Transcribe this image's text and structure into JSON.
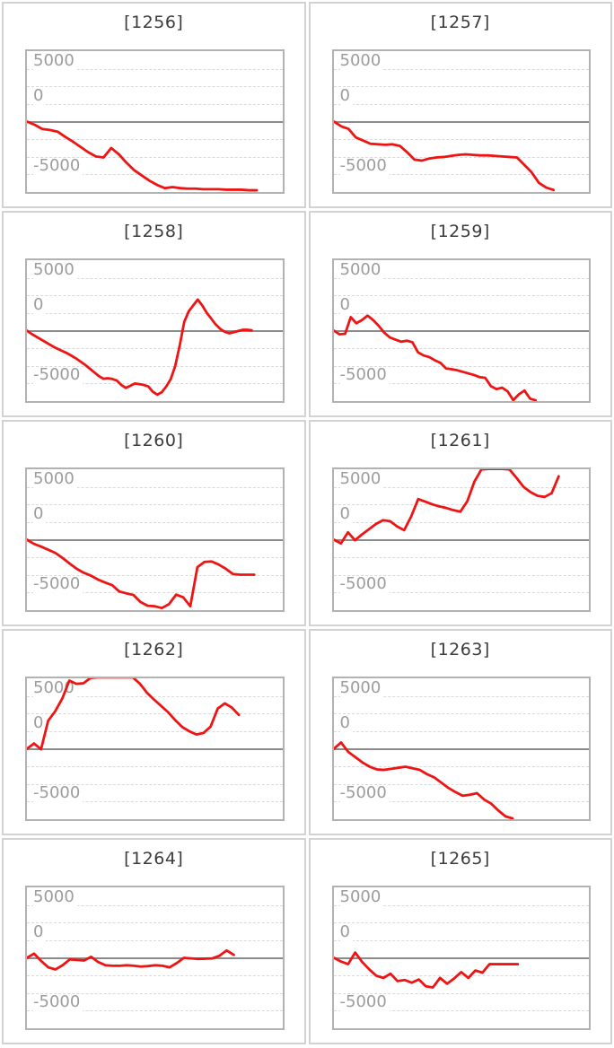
{
  "page": {
    "background_color": "#ffffff",
    "description_visible_text_only": true
  },
  "style": {
    "series_color": "#ee1414",
    "title_color": "#3c3c3c",
    "tick_label_color": "#9c9c9c",
    "cell_border_color": "#d2d2d2",
    "plot_border_color": "#b2b2b2",
    "zero_line_color": "#8a8a8a",
    "grid_line_color": "#d9d9d9"
  },
  "chart_data": {
    "type": "line",
    "layout": "grid-2x5",
    "legend": false,
    "grid": true,
    "y_axis": {
      "tick_labels": [
        "5000",
        "0",
        "-5000"
      ],
      "ticks": [
        5000,
        0,
        -5000
      ],
      "range": [
        -6667,
        6667
      ],
      "zero_line": "solid",
      "minor_gridline_step": 1667
    },
    "x_axis": {
      "tick_labels": [],
      "visible": false
    },
    "series_color": "#ee1414",
    "charts": [
      {
        "title": "[1256]",
        "x_end_fraction": 0.9,
        "values": [
          0,
          -300,
          -700,
          -800,
          -950,
          -1450,
          -1900,
          -2400,
          -2900,
          -3300,
          -3400,
          -2500,
          -3100,
          -3900,
          -4600,
          -5100,
          -5600,
          -6000,
          -6300,
          -6200,
          -6300,
          -6350,
          -6350,
          -6400,
          -6400,
          -6400,
          -6450,
          -6450,
          -6450,
          -6500,
          -6500
        ]
      },
      {
        "title": "[1257]",
        "x_end_fraction": 0.86,
        "values": [
          0,
          -450,
          -700,
          -1500,
          -1800,
          -2100,
          -2150,
          -2200,
          -2150,
          -2300,
          -2900,
          -3600,
          -3700,
          -3500,
          -3400,
          -3350,
          -3250,
          -3150,
          -3100,
          -3150,
          -3200,
          -3200,
          -3250,
          -3300,
          -3350,
          -3400,
          -4100,
          -4800,
          -5800,
          -6250,
          -6470
        ]
      },
      {
        "title": "[1258]",
        "x_end_fraction": 0.88,
        "values": [
          0,
          -300,
          -550,
          -800,
          -1050,
          -1300,
          -1550,
          -1750,
          -1950,
          -2150,
          -2400,
          -2650,
          -2950,
          -3250,
          -3600,
          -3950,
          -4300,
          -4550,
          -4500,
          -4580,
          -4720,
          -5140,
          -5420,
          -5220,
          -5000,
          -5060,
          -5140,
          -5280,
          -5780,
          -6060,
          -5830,
          -5280,
          -4580,
          -3330,
          -1390,
          830,
          1830,
          2390,
          2940,
          2390,
          1690,
          1140,
          580,
          170,
          -110,
          -250,
          -150,
          -30,
          80,
          80,
          30
        ]
      },
      {
        "title": "[1259]",
        "x_end_fraction": 0.79,
        "values": [
          0,
          -350,
          -300,
          1280,
          700,
          1000,
          1420,
          1000,
          450,
          -200,
          -650,
          -850,
          -1050,
          -950,
          -1100,
          -2050,
          -2350,
          -2500,
          -2800,
          -3050,
          -3580,
          -3650,
          -3750,
          -3900,
          -4050,
          -4200,
          -4400,
          -4470,
          -5250,
          -5530,
          -5400,
          -5750,
          -6580,
          -6030,
          -5670,
          -6440,
          -6600
        ]
      },
      {
        "title": "[1260]",
        "x_end_fraction": 0.89,
        "values": [
          0,
          -400,
          -650,
          -950,
          -1250,
          -1720,
          -2250,
          -2750,
          -3130,
          -3400,
          -3770,
          -4050,
          -4300,
          -4900,
          -5080,
          -5230,
          -5900,
          -6250,
          -6300,
          -6470,
          -6100,
          -5200,
          -5450,
          -6300,
          -2600,
          -2100,
          -2060,
          -2350,
          -2750,
          -3250,
          -3310,
          -3310,
          -3310
        ]
      },
      {
        "title": "[1261]",
        "x_end_fraction": 0.88,
        "values": [
          0,
          -350,
          700,
          -50,
          500,
          1000,
          1500,
          1850,
          1750,
          1250,
          900,
          2200,
          3850,
          3600,
          3350,
          3150,
          3000,
          2800,
          2650,
          3650,
          5500,
          6650,
          6700,
          6700,
          6700,
          6650,
          5850,
          5000,
          4500,
          4150,
          4050,
          4400,
          6000
        ]
      },
      {
        "title": "[1262]",
        "x_end_fraction": 0.83,
        "values": [
          0,
          500,
          -50,
          2650,
          3550,
          4750,
          6450,
          6150,
          6200,
          6700,
          6750,
          6750,
          6750,
          6750,
          6750,
          6750,
          6150,
          5300,
          4650,
          4050,
          3450,
          2700,
          2050,
          1650,
          1350,
          1500,
          2100,
          3800,
          4300,
          3900,
          3200
        ]
      },
      {
        "title": "[1263]",
        "x_end_fraction": 0.7,
        "values": [
          0,
          600,
          -300,
          -800,
          -1300,
          -1700,
          -1950,
          -2000,
          -1900,
          -1800,
          -1700,
          -1850,
          -2000,
          -2400,
          -2700,
          -3200,
          -3700,
          -4100,
          -4450,
          -4350,
          -4200,
          -4800,
          -5200,
          -5850,
          -6400,
          -6600
        ]
      },
      {
        "title": "[1264]",
        "x_end_fraction": 0.81,
        "values": [
          0,
          400,
          -300,
          -900,
          -1100,
          -700,
          -150,
          -200,
          -250,
          100,
          -400,
          -700,
          -750,
          -750,
          -700,
          -750,
          -830,
          -780,
          -700,
          -750,
          -900,
          -500,
          0,
          -50,
          -100,
          -80,
          -50,
          200,
          700,
          280
        ]
      },
      {
        "title": "[1265]",
        "x_end_fraction": 0.72,
        "values": [
          0,
          -350,
          -600,
          500,
          -400,
          -1100,
          -1700,
          -1900,
          -1500,
          -2200,
          -2100,
          -2350,
          -2050,
          -2700,
          -2800,
          -1900,
          -2450,
          -1950,
          -1350,
          -1900,
          -1200,
          -1400,
          -600,
          -600,
          -600,
          -600,
          -600
        ]
      }
    ]
  }
}
